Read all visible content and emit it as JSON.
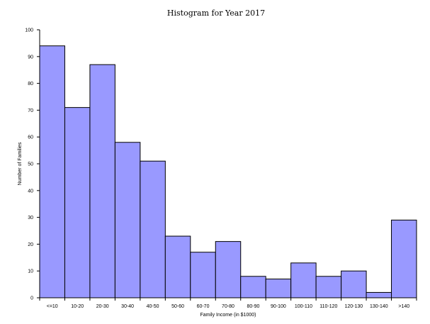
{
  "chart_data": {
    "type": "bar",
    "title": "Histogram for Year 2017",
    "xlabel": "Family Income (in $1000)",
    "ylabel": "Number of Families",
    "categories": [
      "<=10",
      "10-20",
      "20-30",
      "30-40",
      "40-50",
      "50-60",
      "60-70",
      "70-80",
      "80-90",
      "90-100",
      "100-110",
      "110-120",
      "120-130",
      "130-140",
      ">140"
    ],
    "values": [
      94,
      71,
      87,
      58,
      51,
      23,
      17,
      21,
      8,
      7,
      13,
      8,
      10,
      2,
      29
    ],
    "ylim": [
      0,
      100
    ],
    "yticks": [
      0,
      10,
      20,
      30,
      40,
      50,
      60,
      70,
      80,
      90,
      100
    ],
    "bar_color": "#9999ff",
    "grid": false,
    "legend": "none"
  }
}
